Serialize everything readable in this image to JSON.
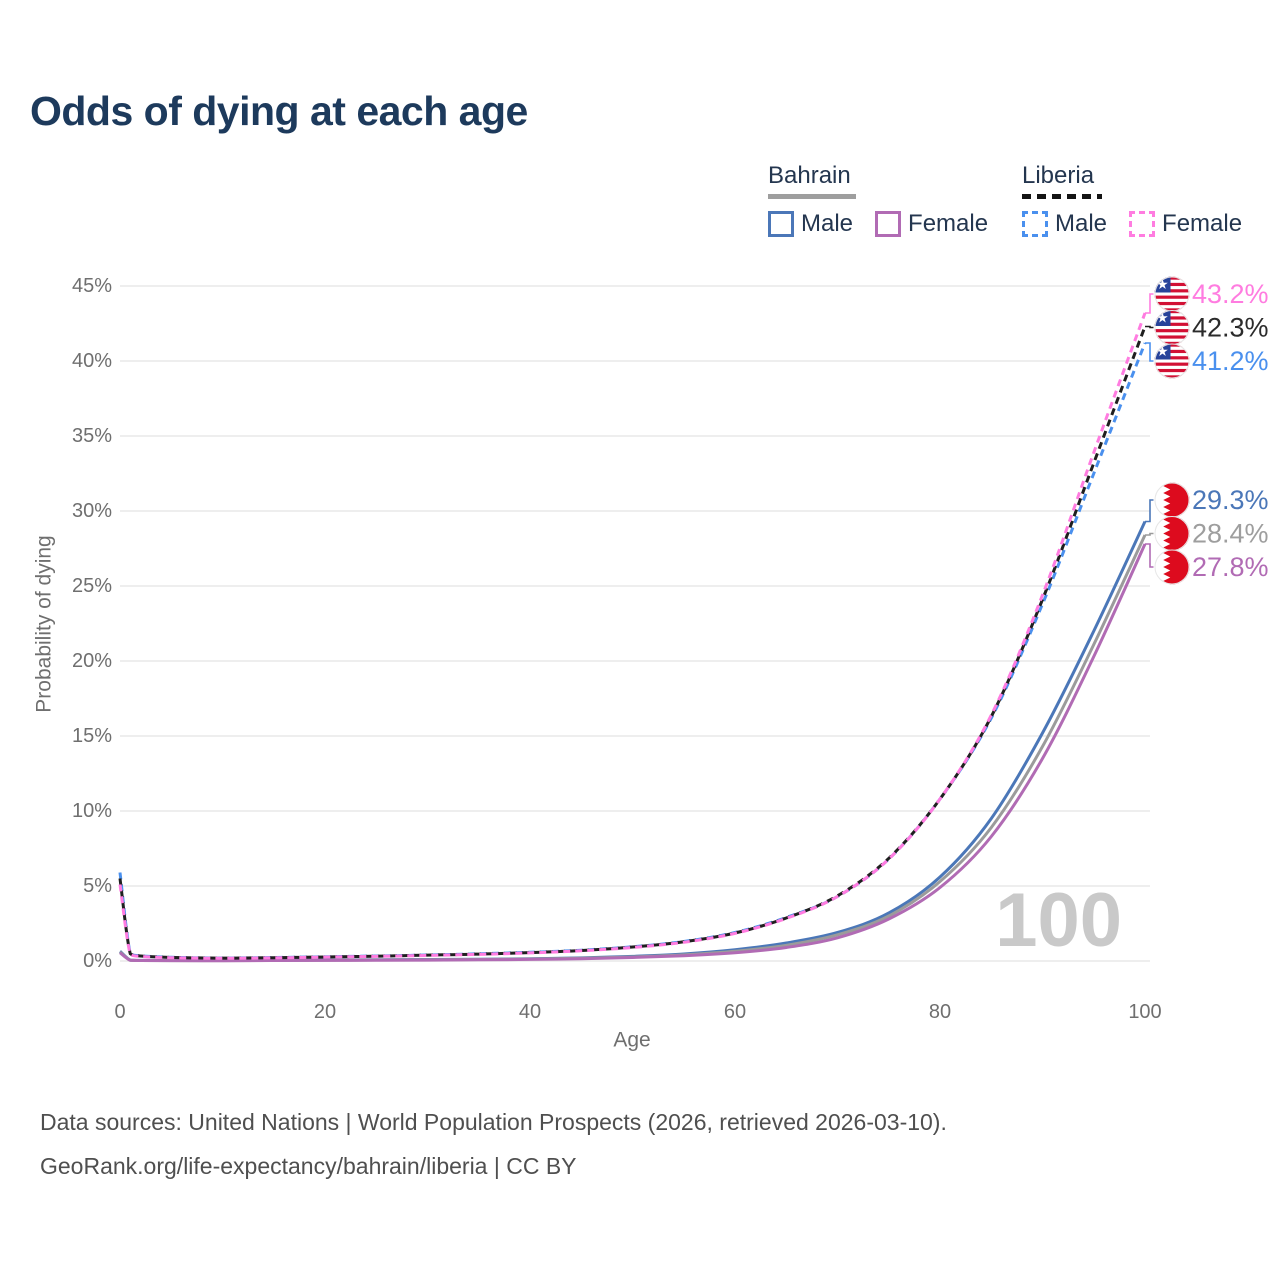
{
  "title": "Odds of dying at each age",
  "legend": {
    "groups": [
      {
        "name": "Bahrain",
        "line_style": "solid",
        "underline_color": "#9e9e9e",
        "items": [
          {
            "label": "Male",
            "color": "#4b77b8"
          },
          {
            "label": "Female",
            "color": "#b16bb4"
          }
        ]
      },
      {
        "name": "Liberia",
        "line_style": "dashed",
        "underline_color": "#141414",
        "items": [
          {
            "label": "Male",
            "color": "#4a90ee"
          },
          {
            "label": "Female",
            "color": "#ff7ce0"
          }
        ]
      }
    ]
  },
  "chart_data": {
    "type": "line",
    "title": "Odds of dying at each age",
    "xlabel": "Age",
    "ylabel": "Probability of dying",
    "xlim": [
      0,
      100
    ],
    "ylim_pct": [
      0,
      45
    ],
    "grid": "horizontal",
    "xticks": [
      0,
      20,
      40,
      60,
      80,
      100
    ],
    "xtick_labels": [
      "0",
      "20",
      "40",
      "60",
      "80",
      "100"
    ],
    "yticks_pct": [
      0,
      5,
      10,
      15,
      20,
      25,
      30,
      35,
      40,
      45
    ],
    "ytick_labels": [
      "0%",
      "5%",
      "10%",
      "15%",
      "20%",
      "25%",
      "30%",
      "35%",
      "40%",
      "45%"
    ],
    "x": [
      0,
      1,
      2,
      5,
      10,
      15,
      20,
      25,
      30,
      35,
      40,
      45,
      50,
      55,
      60,
      65,
      70,
      75,
      80,
      85,
      90,
      95,
      100
    ],
    "series": [
      {
        "id": "bahrain-male",
        "name": "Bahrain male",
        "country": "Bahrain",
        "flag": "bahrain",
        "sex": "male",
        "color": "#4b77b8",
        "label_color": "#4b77b8",
        "dash": null,
        "end_label": "29.3%",
        "end_value_pct": 29.3,
        "values_pct": [
          0.65,
          0.06,
          0.04,
          0.03,
          0.03,
          0.05,
          0.07,
          0.08,
          0.1,
          0.12,
          0.15,
          0.21,
          0.31,
          0.47,
          0.75,
          1.2,
          1.9,
          3.2,
          5.6,
          9.5,
          15.2,
          22.0,
          29.3
        ]
      },
      {
        "id": "bahrain-both",
        "name": "Bahrain both sexes",
        "country": "Bahrain",
        "flag": "bahrain",
        "sex": "both",
        "color": "#9b9b9b",
        "label_color": "#9e9e9e",
        "dash": null,
        "end_label": "28.4%",
        "end_value_pct": 28.4,
        "values_pct": [
          0.6,
          0.055,
          0.035,
          0.027,
          0.025,
          0.04,
          0.055,
          0.065,
          0.08,
          0.1,
          0.13,
          0.18,
          0.27,
          0.41,
          0.65,
          1.05,
          1.75,
          3.0,
          5.3,
          8.9,
          14.3,
          21.1,
          28.4
        ]
      },
      {
        "id": "bahrain-female",
        "name": "Bahrain female",
        "country": "Bahrain",
        "flag": "bahrain",
        "sex": "female",
        "color": "#b16bb4",
        "label_color": "#b16bb4",
        "dash": null,
        "end_label": "27.8%",
        "end_value_pct": 27.8,
        "values_pct": [
          0.55,
          0.05,
          0.03,
          0.024,
          0.022,
          0.03,
          0.04,
          0.05,
          0.06,
          0.08,
          0.11,
          0.15,
          0.23,
          0.35,
          0.55,
          0.9,
          1.55,
          2.8,
          4.9,
          8.3,
          13.5,
          20.3,
          27.8
        ]
      },
      {
        "id": "liberia-male",
        "name": "Liberia male",
        "country": "Liberia",
        "flag": "liberia",
        "sex": "male",
        "color": "#4a90ee",
        "label_color": "#4a90ee",
        "dash": "7 5",
        "end_label": "41.2%",
        "end_value_pct": 41.2,
        "values_pct": [
          5.9,
          0.5,
          0.35,
          0.25,
          0.2,
          0.23,
          0.28,
          0.33,
          0.4,
          0.48,
          0.58,
          0.72,
          0.95,
          1.3,
          1.9,
          2.9,
          4.3,
          6.8,
          10.8,
          16.2,
          23.8,
          32.5,
          41.2
        ]
      },
      {
        "id": "liberia-both",
        "name": "Liberia both sexes",
        "country": "Liberia",
        "flag": "liberia",
        "sex": "both",
        "color": "#1f1f1f",
        "label_color": "#2b2b2b",
        "dash": "7 5",
        "end_label": "42.3%",
        "end_value_pct": 42.3,
        "values_pct": [
          5.5,
          0.48,
          0.33,
          0.24,
          0.19,
          0.22,
          0.27,
          0.32,
          0.39,
          0.46,
          0.56,
          0.7,
          0.93,
          1.28,
          1.87,
          2.87,
          4.35,
          6.85,
          10.8,
          16.3,
          24.1,
          33.2,
          42.3
        ]
      },
      {
        "id": "liberia-female",
        "name": "Liberia female",
        "country": "Liberia",
        "flag": "liberia",
        "sex": "female",
        "color": "#ff7ce0",
        "label_color": "#ff7ce0",
        "dash": "7 5",
        "end_label": "43.2%",
        "end_value_pct": 43.2,
        "values_pct": [
          5.1,
          0.45,
          0.31,
          0.22,
          0.18,
          0.21,
          0.26,
          0.31,
          0.37,
          0.44,
          0.54,
          0.68,
          0.9,
          1.25,
          1.84,
          2.84,
          4.3,
          6.8,
          10.8,
          16.4,
          24.4,
          33.9,
          43.2
        ]
      }
    ]
  },
  "flags": {
    "bahrain": {
      "red": "#dd0b1e",
      "white": "#ffffff"
    },
    "liberia": {
      "red": "#d21034",
      "white": "#ffffff",
      "canton_blue": "#27439a",
      "star": "#ffffff"
    }
  },
  "watermark": "100",
  "footer": {
    "line1": "Data sources: United Nations | World Population Prospects (2026, retrieved 2026-03-10).",
    "line2": "GeoRank.org/life-expectancy/bahrain/liberia | CC BY"
  },
  "style_colors": {
    "title_text": "#1d3a5c",
    "legend_text": "#24364f",
    "axis_text": "#6f6f6f",
    "gridline": "#e8e8e8",
    "watermark_text": "#c9c9c9",
    "footer_text": "#4f4f4f"
  }
}
